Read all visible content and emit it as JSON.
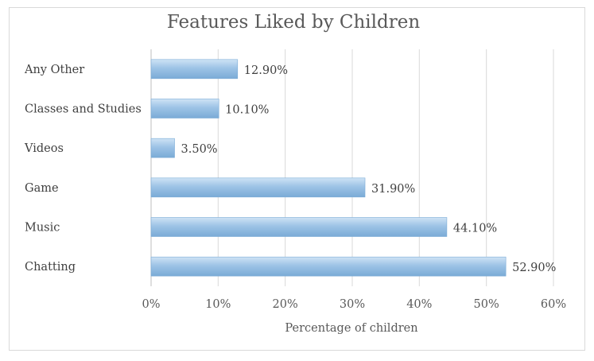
{
  "chart_data": {
    "type": "bar",
    "orientation": "horizontal",
    "title": "Features Liked by  Children",
    "xlabel": "Percentage of children",
    "ylabel": "",
    "categories": [
      "Any Other",
      "Classes and Studies",
      "Videos",
      "Game",
      "Music",
      "Chatting"
    ],
    "values": [
      12.9,
      10.1,
      3.5,
      31.9,
      44.1,
      52.9
    ],
    "data_labels": [
      "12.90%",
      "10.10%",
      "3.50%",
      "31.90%",
      "44.10%",
      "52.90%"
    ],
    "xlim": [
      0,
      60
    ],
    "x_ticks": [
      0,
      10,
      20,
      30,
      40,
      50,
      60
    ],
    "x_tick_labels": [
      "0%",
      "10%",
      "20%",
      "30%",
      "40%",
      "50%",
      "60%"
    ],
    "grid": "vertical",
    "legend": "none",
    "bar_color": "#9dc3e6",
    "bar_color_light": "#cfe3f5",
    "bar_color_dark": "#7aabd6",
    "grid_color": "#d9d9d9",
    "axis_color": "#bfbfbf"
  }
}
